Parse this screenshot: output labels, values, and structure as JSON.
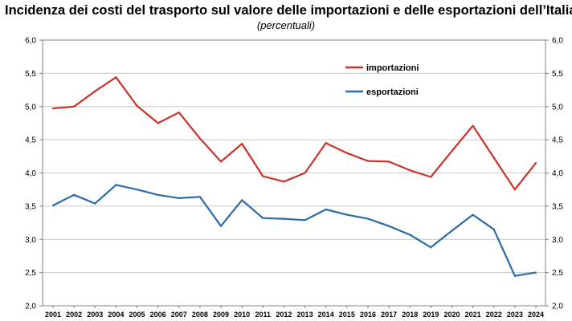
{
  "chart_data": {
    "type": "line",
    "title": "Incidenza dei costi del trasporto sul valore delle importazioni e delle esportazioni dell’Italia (",
    "subtitle": "(percentuali)",
    "x": [
      "2001",
      "2002",
      "2003",
      "2004",
      "2005",
      "2006",
      "2007",
      "2008",
      "2009",
      "2010",
      "2011",
      "2012",
      "2013",
      "2014",
      "2015",
      "2016",
      "2017",
      "2018",
      "2019",
      "2020",
      "2021",
      "2022",
      "2023",
      "2024"
    ],
    "series": [
      {
        "name": "importazioni",
        "color": "#c8332b",
        "values": [
          4.97,
          5.0,
          5.23,
          5.44,
          5.01,
          4.75,
          4.91,
          4.52,
          4.17,
          4.44,
          3.95,
          3.87,
          4.0,
          4.45,
          4.3,
          4.18,
          4.17,
          4.04,
          3.94,
          4.33,
          4.71,
          4.23,
          3.75,
          4.15
        ]
      },
      {
        "name": "esportazioni",
        "color": "#2b6ca8",
        "values": [
          3.51,
          3.67,
          3.54,
          3.82,
          3.75,
          3.67,
          3.62,
          3.64,
          3.2,
          3.59,
          3.32,
          3.31,
          3.29,
          3.45,
          3.37,
          3.31,
          3.2,
          3.07,
          2.88,
          3.13,
          3.37,
          3.15,
          2.45,
          2.5
        ]
      }
    ],
    "ylim": [
      2.0,
      6.0
    ],
    "yticks": [
      "2,0",
      "2,5",
      "3,0",
      "3,5",
      "4,0",
      "4,5",
      "5,0",
      "5,5",
      "6,0"
    ],
    "ytick_values": [
      2.0,
      2.5,
      3.0,
      3.5,
      4.0,
      4.5,
      5.0,
      5.5,
      6.0
    ],
    "secondary_axis": true,
    "grid": true,
    "legend_position": "top-right"
  }
}
